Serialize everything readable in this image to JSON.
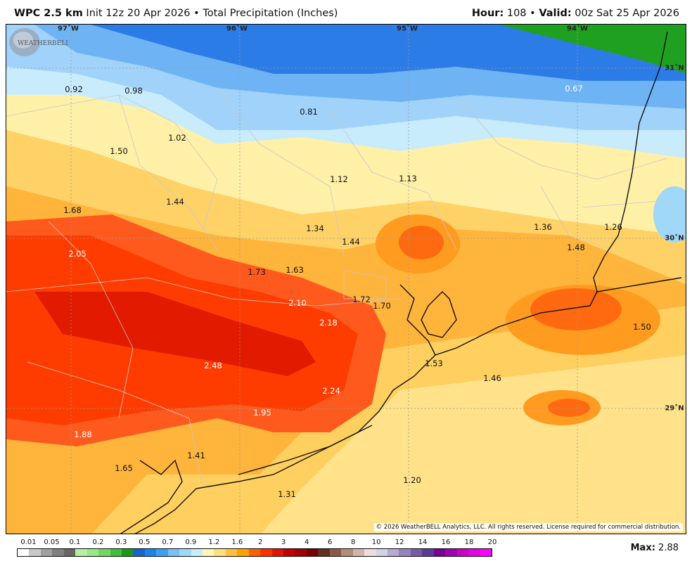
{
  "header": {
    "model": "WPC 2.5 km",
    "init": "Init 12z 20 Apr 2026",
    "separator": "•",
    "product": "Total Precipitation (Inches)",
    "hour_label": "Hour:",
    "hour_value": "108",
    "valid_label": "Valid:",
    "valid_value": "00z Sat 25 Apr 2026"
  },
  "map": {
    "longitude_labels": [
      "97˚W",
      "96˚W",
      "95˚W",
      "94˚W"
    ],
    "latitude_labels": [
      "31˚N",
      "30˚N",
      "29˚N"
    ],
    "values": [
      "0.92",
      "0.98",
      "0.81",
      "0.67",
      "1.02",
      "1.50",
      "1.12",
      "1.13",
      "1.68",
      "1.44",
      "1.34",
      "1.44",
      "1.36",
      "1.26",
      "1.48",
      "2.05",
      "1.73",
      "1.63",
      "1.72",
      "1.70",
      "2.10",
      "2.18",
      "2.48",
      "2.24",
      "1.53",
      "1.46",
      "1.50",
      "1.95",
      "1.88",
      "1.65",
      "1.41",
      "1.31",
      "1.20"
    ],
    "copyright": "© 2026 WeatherBELL Analytics, LLC. All rights reserved. License required for commercial distribution.",
    "logo_text": "WEATHERBELL"
  },
  "legend": {
    "ticks": [
      "0.01",
      "0.05",
      "0.1",
      "0.2",
      "0.3",
      "0.5",
      "0.7",
      "0.9",
      "1.2",
      "1.6",
      "2",
      "3",
      "4",
      "6",
      "8",
      "10",
      "12",
      "14",
      "16",
      "18",
      "20"
    ],
    "colors": [
      "#ffffff",
      "#c8c8c8",
      "#a0a0a0",
      "#808080",
      "#666666",
      "#b4f0a0",
      "#96e888",
      "#70d860",
      "#3cc03c",
      "#1a9a1a",
      "#1464d2",
      "#1e82eb",
      "#3ca0f0",
      "#78c0f8",
      "#a0d8fa",
      "#c8ecfc",
      "#fff5b4",
      "#ffe080",
      "#ffc040",
      "#ffa000",
      "#ff6000",
      "#ff3000",
      "#e11400",
      "#c00000",
      "#a00000",
      "#780000",
      "#603020",
      "#8c5a46",
      "#b48c78",
      "#d2b4aa",
      "#f0dcdc",
      "#d2d2e6",
      "#b4aad2",
      "#9682be",
      "#785aa8",
      "#5a3c96",
      "#780096",
      "#a000b4",
      "#c800c8",
      "#e600e6",
      "#ff00ff"
    ],
    "max_label": "Max:",
    "max_value": "2.88"
  }
}
